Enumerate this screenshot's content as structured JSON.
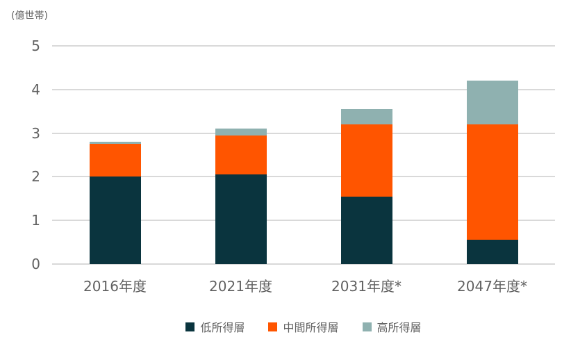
{
  "unit_label": "(億世帯)",
  "colors": {
    "low_income": "#0a343e",
    "middle_income": "#ff5500",
    "high_income": "#8fb1b0",
    "grid": "#d9d9d9",
    "text": "#616161",
    "background": "#ffffff"
  },
  "chart_data": {
    "type": "bar",
    "stacked": true,
    "title": "",
    "ylabel": "(億世帯)",
    "xlabel": "",
    "ylim": [
      0,
      5
    ],
    "yticks": [
      0,
      1,
      2,
      3,
      4,
      5
    ],
    "grid": true,
    "legend_position": "bottom",
    "categories": [
      "2016年度",
      "2021年度",
      "2031年度*",
      "2047年度*"
    ],
    "series": [
      {
        "name": "低所得層",
        "color": "#0a343e",
        "values": [
          2.0,
          2.05,
          1.55,
          0.55
        ]
      },
      {
        "name": "中間所得層",
        "color": "#ff5500",
        "values": [
          0.75,
          0.9,
          1.65,
          2.65
        ]
      },
      {
        "name": "高所得層",
        "color": "#8fb1b0",
        "values": [
          0.05,
          0.15,
          0.35,
          1.0
        ]
      }
    ],
    "totals": [
      2.8,
      3.1,
      3.55,
      4.2
    ]
  }
}
